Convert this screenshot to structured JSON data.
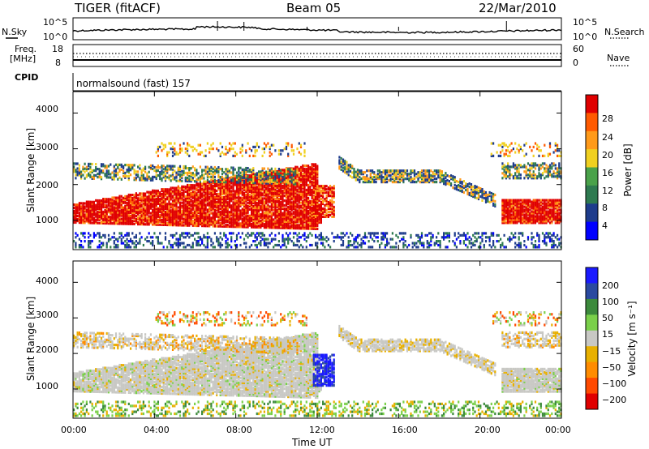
{
  "header": {
    "radar": "TIGER (fitACF)",
    "beam": "Beam 05",
    "date": "22/Mar/2010"
  },
  "noise_panel": {
    "left_label": "N.Sky",
    "right_label": "N.Search",
    "left_ticks": [
      "10^5",
      "10^0"
    ],
    "right_ticks": [
      "10^5",
      "10^0"
    ]
  },
  "freq_panel": {
    "left_label_1": "Freq.",
    "left_label_2": "[MHz]",
    "left_ticks": [
      "18",
      "8"
    ],
    "right_label": "Nave",
    "right_ticks": [
      "60",
      "0"
    ]
  },
  "cpid": {
    "label": "CPID",
    "program": "normalsound (fast) 157"
  },
  "colors": {
    "power": [
      "#0000ff",
      "#1e3c8c",
      "#2e7a50",
      "#4aa24a",
      "#f0d020",
      "#ff9a1a",
      "#ff5a00",
      "#e00000"
    ],
    "velocity": [
      "#1a1aff",
      "#2a4aa0",
      "#3c8a3c",
      "#7ad04a",
      "#c8c8c4",
      "#e8b000",
      "#ff8c00",
      "#ff4a00",
      "#e00000"
    ]
  },
  "chart_data": [
    {
      "type": "heatmap",
      "name": "power",
      "xlabel": "",
      "ylabel": "Slant Range [km]",
      "xlim": [
        "00:00",
        "24:00"
      ],
      "ylim": [
        180,
        4600
      ],
      "yticks": [
        1000,
        2000,
        3000,
        4000
      ],
      "colorbar": {
        "label": "Power [dB]",
        "ticks": [
          4,
          8,
          12,
          16,
          20,
          24,
          28
        ],
        "range": [
          0,
          32
        ]
      }
    },
    {
      "type": "heatmap",
      "name": "velocity",
      "xlabel": "Time UT",
      "ylabel": "Slant Range [km]",
      "xlim": [
        "00:00",
        "24:00"
      ],
      "ylim": [
        180,
        4600
      ],
      "yticks": [
        1000,
        2000,
        3000,
        4000
      ],
      "xticks": [
        "00:00",
        "04:00",
        "08:00",
        "12:00",
        "16:00",
        "20:00",
        "00:00"
      ],
      "colorbar": {
        "label": "Velocity [m s⁻¹]",
        "ticks": [
          "200",
          "100",
          "50",
          "15",
          "−15",
          "−50",
          "−100",
          "−200"
        ]
      }
    }
  ]
}
